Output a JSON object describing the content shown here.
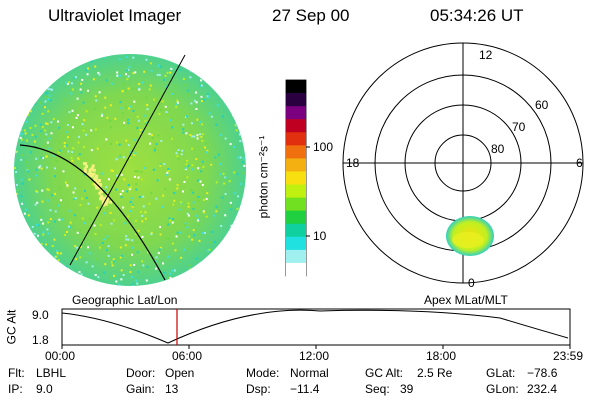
{
  "header": {
    "instrument": "Ultraviolet Imager",
    "date": "27 Sep 00",
    "time": "05:34:26 UT"
  },
  "colorbar": {
    "unit_label": "photon cm⁻²s⁻¹",
    "ticks": [
      "100",
      "10"
    ],
    "colors": [
      "#000000",
      "#2a0040",
      "#7a0080",
      "#c00020",
      "#e03010",
      "#f07010",
      "#f4b010",
      "#f8e010",
      "#c0f010",
      "#70e020",
      "#20d040",
      "#10d0a0",
      "#20e0e0",
      "#a0f0f0",
      "#ffffff"
    ]
  },
  "polar_plot": {
    "mlt_labels": {
      "top": "12",
      "left": "18",
      "right": "6",
      "bottom": "0"
    },
    "lat_labels": [
      "60",
      "70",
      "80"
    ]
  },
  "panel_labels": {
    "left": "Geographic Lat/Lon",
    "right": "Apex MLat/MLT"
  },
  "altitude_plot": {
    "ylabel": "GC Alt",
    "yticks": [
      "9.0",
      "1.8"
    ],
    "xticks": [
      "00:00",
      "06:00",
      "12:00",
      "18:00",
      "23:59"
    ],
    "marker_color": "#cc0000"
  },
  "status": {
    "flt_label": "Flt:",
    "flt_value": "LBHL",
    "ip_label": "IP:",
    "ip_value": "9.0",
    "door_label": "Door:",
    "door_value": "Open",
    "gain_label": "Gain:",
    "gain_value": "13",
    "mode_label": "Mode:",
    "mode_value": "Normal",
    "dsp_label": "Dsp:",
    "dsp_value": "−11.4",
    "gcalt_label": "GC Alt:",
    "gcalt_value": "2.5 Re",
    "seq_label": "Seq:",
    "seq_value": "39",
    "glat_label": "GLat:",
    "glat_value": "−78.6",
    "glon_label": "GLon:",
    "glon_value": "232.4"
  }
}
